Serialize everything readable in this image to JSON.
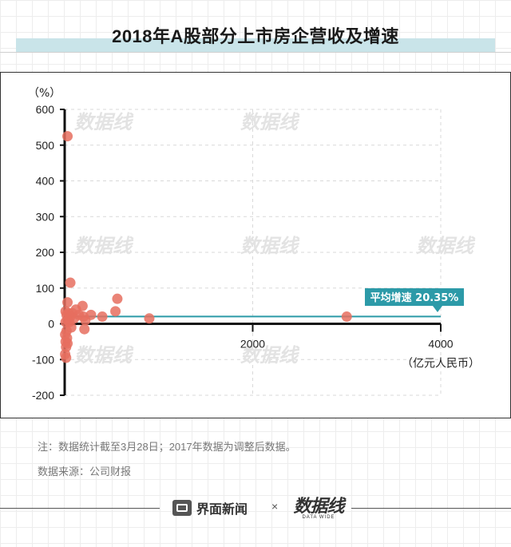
{
  "title": "2018年A股部分上市房企营收及增速",
  "chart_data": {
    "type": "scatter",
    "title": "2018年A股部分上市房企营收及增速",
    "ylabel": "（%）",
    "xlabel": "（亿元人民币）",
    "xlim": [
      0,
      4000
    ],
    "ylim": [
      -200,
      600
    ],
    "xticks": [
      "2000",
      "4000"
    ],
    "yticks": [
      "600",
      "500",
      "400",
      "300",
      "200",
      "100",
      "0",
      "-100",
      "-200"
    ],
    "grid": true,
    "point_color": "#e66f5f",
    "reference_color": "#2c9aa8",
    "average": {
      "label": "平均增速 20.35%",
      "value": 20.35
    },
    "points": [
      {
        "x": 30,
        "y": 525
      },
      {
        "x": 60,
        "y": 115
      },
      {
        "x": 560,
        "y": 70
      },
      {
        "x": 30,
        "y": 60
      },
      {
        "x": 190,
        "y": 50
      },
      {
        "x": 120,
        "y": 40
      },
      {
        "x": 10,
        "y": 35
      },
      {
        "x": 540,
        "y": 35
      },
      {
        "x": 80,
        "y": 30
      },
      {
        "x": 40,
        "y": 30
      },
      {
        "x": 280,
        "y": 25
      },
      {
        "x": 150,
        "y": 25
      },
      {
        "x": 20,
        "y": 25
      },
      {
        "x": 60,
        "y": 20
      },
      {
        "x": 200,
        "y": 20
      },
      {
        "x": 400,
        "y": 20
      },
      {
        "x": 3000,
        "y": 20
      },
      {
        "x": 900,
        "y": 15
      },
      {
        "x": 100,
        "y": 15
      },
      {
        "x": 220,
        "y": 10
      },
      {
        "x": 30,
        "y": 10
      },
      {
        "x": 50,
        "y": 5
      },
      {
        "x": 10,
        "y": 5
      },
      {
        "x": 70,
        "y": -10
      },
      {
        "x": 210,
        "y": -15
      },
      {
        "x": 20,
        "y": -20
      },
      {
        "x": 5,
        "y": -30
      },
      {
        "x": 25,
        "y": -40
      },
      {
        "x": 10,
        "y": -50
      },
      {
        "x": 30,
        "y": -55
      },
      {
        "x": 15,
        "y": -65
      },
      {
        "x": 5,
        "y": -85
      },
      {
        "x": 15,
        "y": -95
      }
    ]
  },
  "notes": {
    "line1": "注：数据统计截至3月28日；2017年数据为调整后数据。",
    "line2": "数据来源：公司财报"
  },
  "footer": {
    "brand": "界面新闻",
    "times": "×",
    "partner": "数据线",
    "partner_sub": "DATA WIDE"
  }
}
